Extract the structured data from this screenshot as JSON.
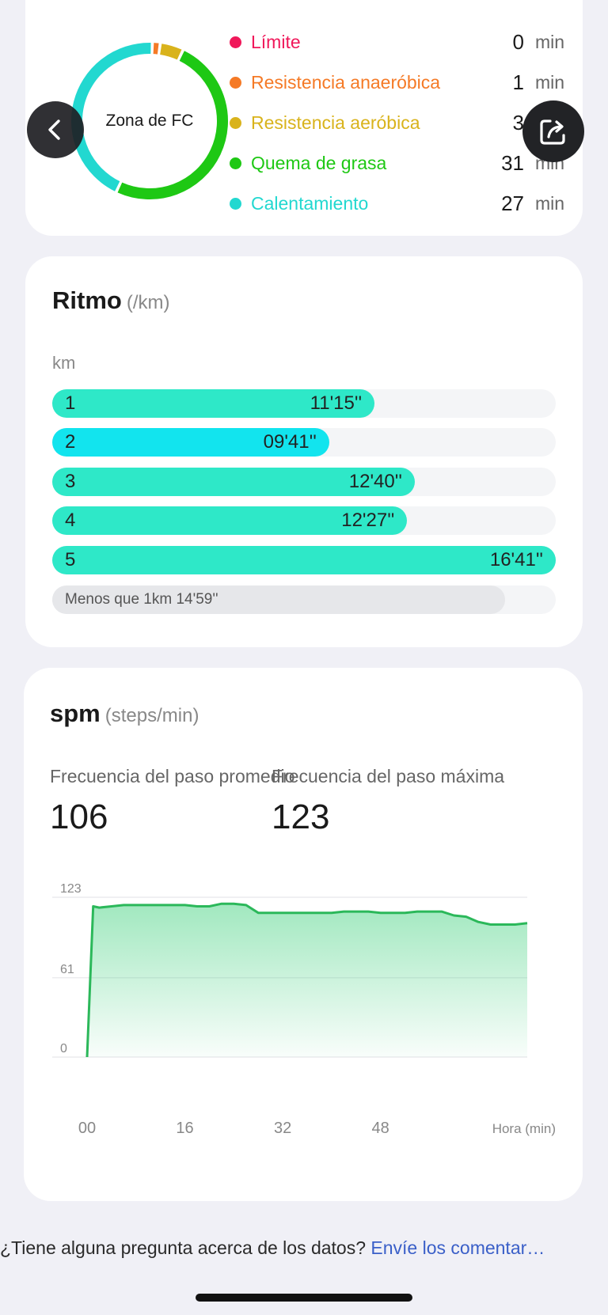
{
  "hr_zones": {
    "center_label": "Zona de FC",
    "zones": [
      {
        "name": "Límite",
        "value": "0",
        "unit": "min",
        "color": "#f0185a"
      },
      {
        "name": "Resistencia anaeróbica",
        "value": "1",
        "unit": "min",
        "color": "#f57a26"
      },
      {
        "name": "Resistencia aeróbica",
        "value": "3",
        "unit": "min",
        "color": "#d9b31c"
      },
      {
        "name": "Quema de grasa",
        "value": "31",
        "unit": "min",
        "color": "#1ec814"
      },
      {
        "name": "Calentamiento",
        "value": "27",
        "unit": "min",
        "color": "#22d8d0"
      }
    ],
    "back_icon": "chevron-left-icon",
    "share_icon": "share-icon"
  },
  "pace": {
    "title": "Ritmo",
    "unit": "(/km)",
    "axis_label": "km",
    "splits": [
      {
        "km": "1",
        "time": "11'15''",
        "fraction": 0.64
      },
      {
        "km": "2",
        "time": "09'41''",
        "fraction": 0.55,
        "highlight": true
      },
      {
        "km": "3",
        "time": "12'40''",
        "fraction": 0.72
      },
      {
        "km": "4",
        "time": "12'27''",
        "fraction": 0.705
      },
      {
        "km": "5",
        "time": "16'41''",
        "fraction": 1.0
      }
    ],
    "remainder": "Menos que 1km 14'59''",
    "colors": {
      "bar": "#2ee8c8",
      "highlight": "#12e4ee"
    }
  },
  "spm": {
    "title": "spm",
    "unit": "(steps/min)",
    "avg_label": "Frecuencia del paso promedio",
    "avg_value": "106",
    "max_label": "Frecuencia del paso máxima",
    "max_value": "123"
  },
  "chart_data": {
    "type": "area",
    "xlabel": "Hora (min)",
    "x_ticks": [
      "00",
      "16",
      "32",
      "48"
    ],
    "y_ticks": [
      "0",
      "61",
      "123"
    ],
    "ylim": [
      0,
      123
    ],
    "xlim": [
      0,
      72
    ],
    "grid": true,
    "color": "#2ecc71",
    "x": [
      0,
      1,
      2,
      4,
      6,
      8,
      10,
      12,
      14,
      16,
      18,
      20,
      22,
      24,
      26,
      28,
      30,
      32,
      34,
      36,
      38,
      40,
      42,
      44,
      46,
      48,
      50,
      52,
      54,
      56,
      58,
      60,
      62,
      64,
      66,
      68,
      70,
      72
    ],
    "values": [
      0,
      116,
      115,
      116,
      117,
      117,
      117,
      117,
      117,
      117,
      116,
      116,
      118,
      118,
      117,
      111,
      111,
      111,
      111,
      111,
      111,
      111,
      112,
      112,
      112,
      111,
      111,
      111,
      112,
      112,
      112,
      109,
      108,
      104,
      102,
      102,
      102,
      103
    ]
  },
  "footer": {
    "question": "¿Tiene alguna pregunta acerca de los datos? ",
    "link": "Envíe los comentar…"
  }
}
